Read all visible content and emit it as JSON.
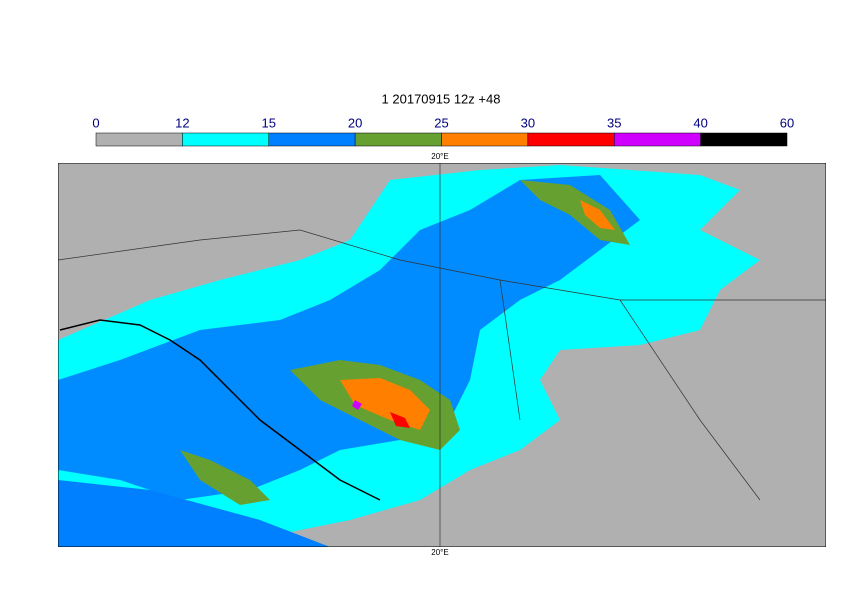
{
  "title": "1 20170915 12z +48",
  "colorbar": {
    "ticks": [
      0,
      12,
      15,
      20,
      25,
      30,
      35,
      40,
      60
    ],
    "colors": [
      "#b0b0b0",
      "#00ffff",
      "#0080ff",
      "#66a030",
      "#ff8000",
      "#ff0000",
      "#d000ff",
      "#000000"
    ]
  },
  "map": {
    "top_label": "20°E",
    "bottom_label": "20°E"
  }
}
